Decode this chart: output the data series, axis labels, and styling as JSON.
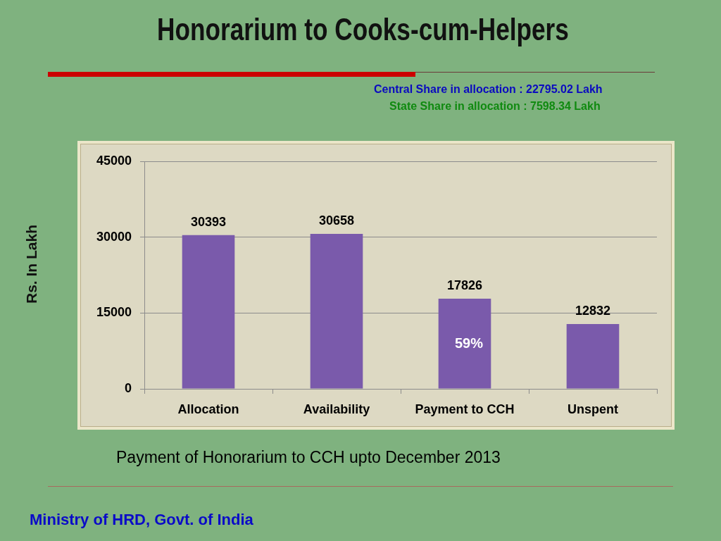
{
  "chart_data": {
    "type": "bar",
    "title": "Honorarium to Cooks-cum-Helpers",
    "ylabel": "Rs. In Lakh",
    "categories": [
      "Allocation",
      "Availability",
      "Payment to CCH",
      "Unspent"
    ],
    "values": [
      30393,
      30658,
      17826,
      12832
    ],
    "color": "#7a5aab",
    "ylim": [
      0,
      45000
    ],
    "yticks": [
      0,
      15000,
      30000,
      45000
    ],
    "grid": "y",
    "data_labels": true,
    "annotations": [
      "Central Share in allocation : 22795.02 Lakh",
      "State Share in allocation : 7598.34 Lakh",
      "59%",
      "Payment of Honorarium to CCH upto December 2013",
      "Ministry of HRD, Govt. of India"
    ]
  }
}
